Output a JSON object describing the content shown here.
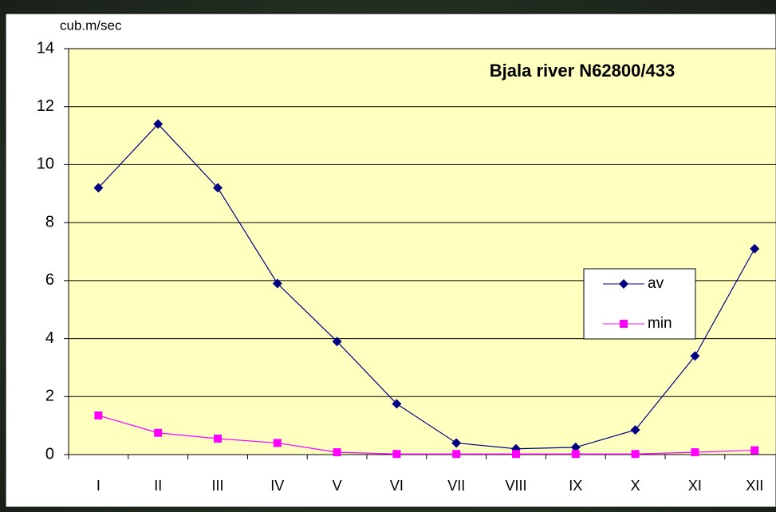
{
  "chart_data": {
    "type": "line",
    "title": "Bjala river N62800/433",
    "y_label": "cub.m/sec",
    "categories": [
      "I",
      "II",
      "III",
      "IV",
      "V",
      "VI",
      "VII",
      "VIII",
      "IX",
      "X",
      "XI",
      "XII"
    ],
    "series": [
      {
        "name": "av",
        "color": "#000080",
        "marker": "diamond",
        "values": [
          9.2,
          11.4,
          9.2,
          5.9,
          3.9,
          1.75,
          0.4,
          0.2,
          0.25,
          0.85,
          3.4,
          7.1
        ]
      },
      {
        "name": "min",
        "color": "#ff00ff",
        "marker": "square",
        "values": [
          1.35,
          0.75,
          0.55,
          0.4,
          0.08,
          0.02,
          0.02,
          0.02,
          0.02,
          0.02,
          0.08,
          0.15
        ]
      }
    ],
    "ylim": [
      0,
      14
    ],
    "yticks": [
      0,
      2,
      4,
      6,
      8,
      10,
      12,
      14
    ],
    "grid": true,
    "plot_color": "#ffffc0"
  }
}
